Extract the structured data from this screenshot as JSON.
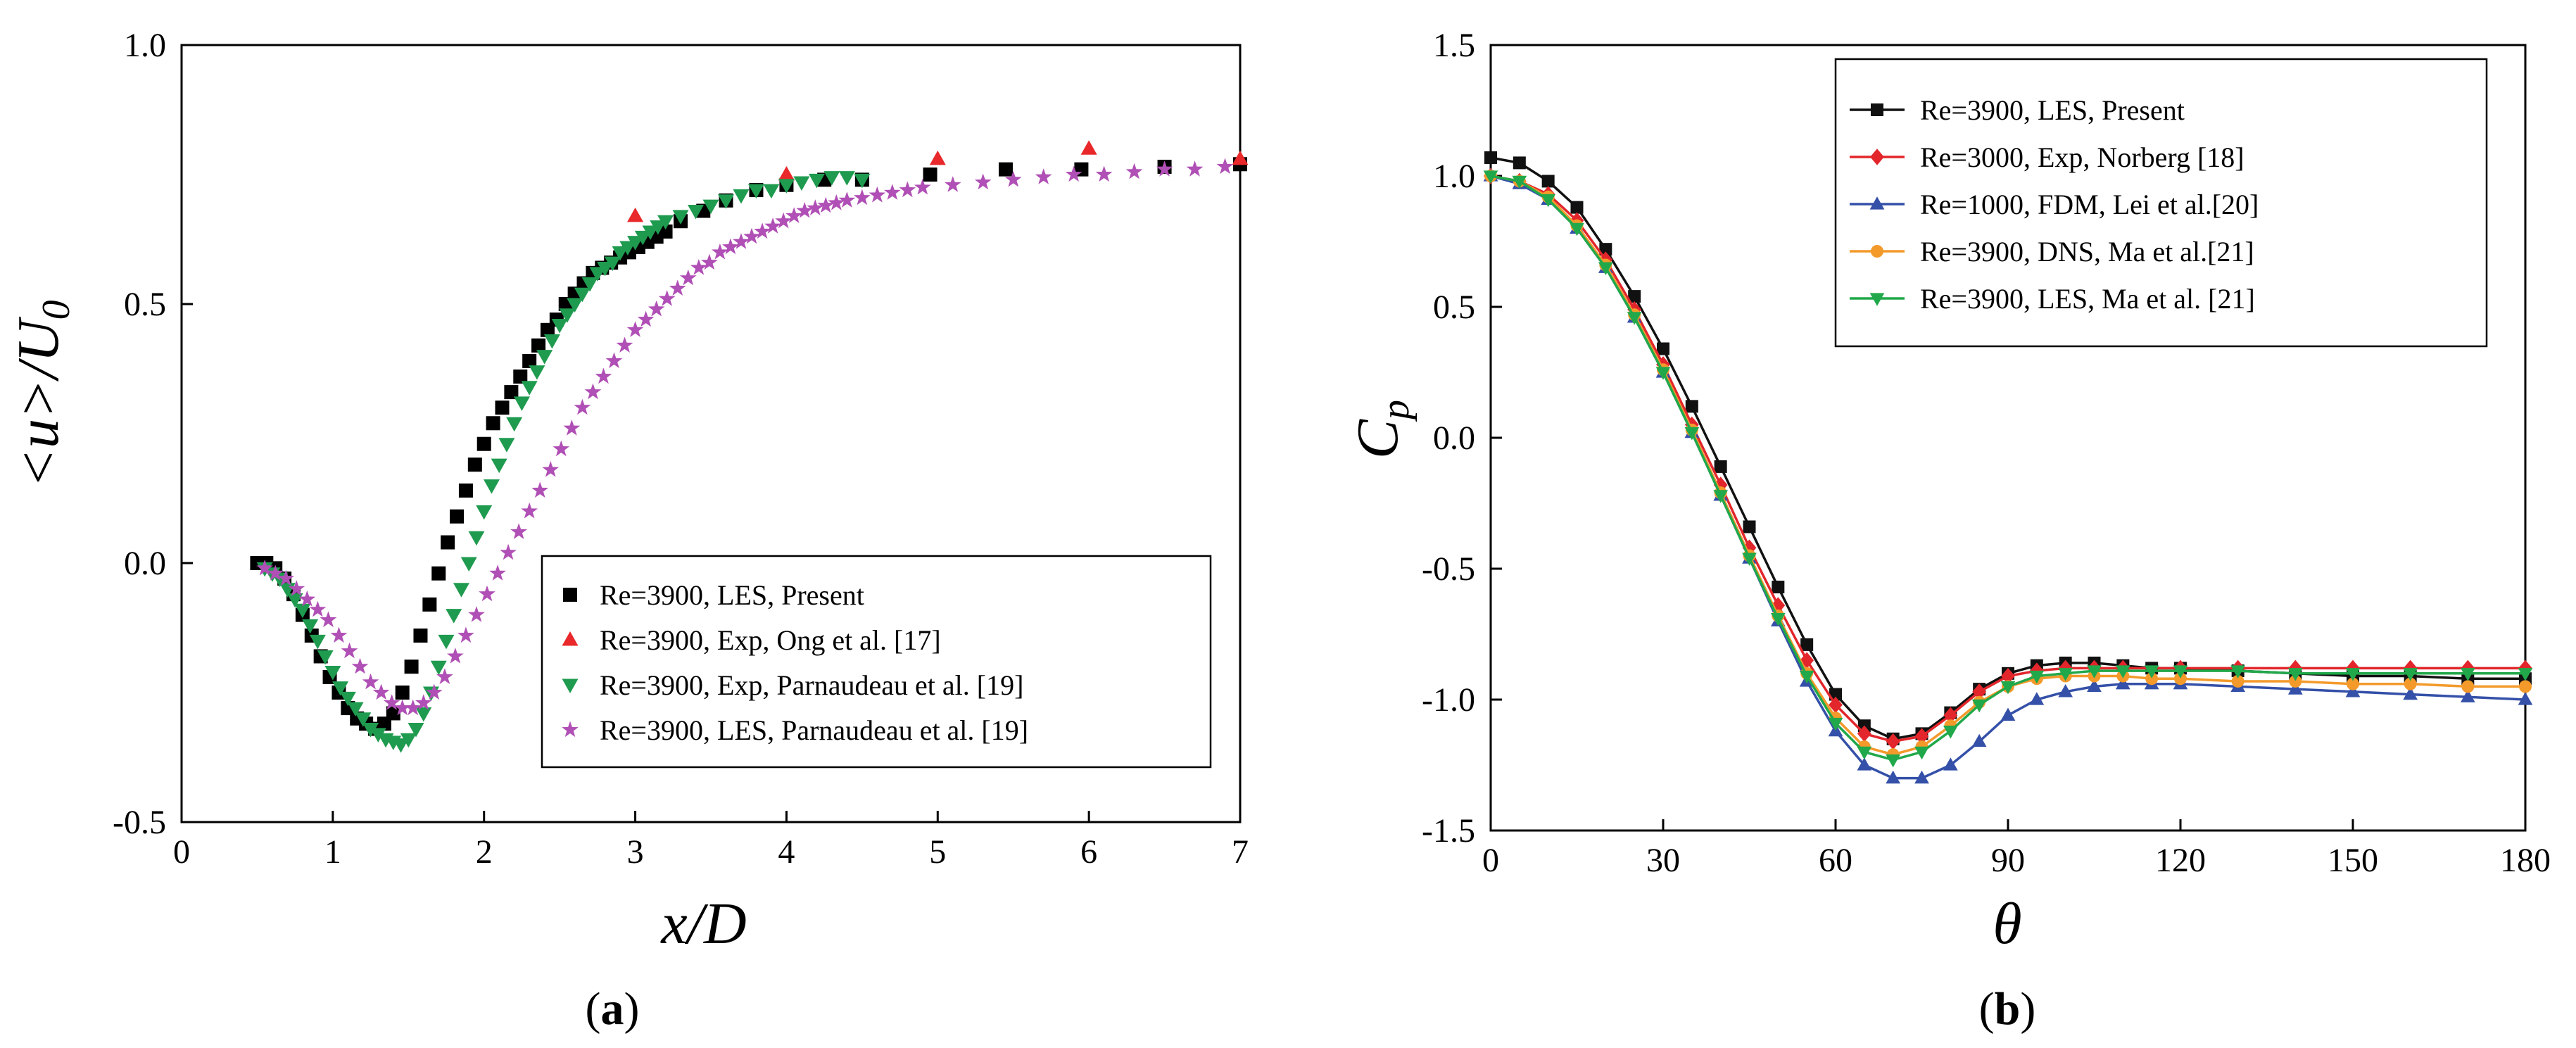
{
  "chart_data": [
    {
      "type": "scatter",
      "panel_label": "a",
      "xlabel": "x/D",
      "ylabel": "<u>/U",
      "ylabel_subscript": "0",
      "xlim": [
        0,
        7
      ],
      "ylim": [
        -0.5,
        1.0
      ],
      "xticks": [
        "0",
        "1",
        "2",
        "3",
        "4",
        "5",
        "6",
        "7"
      ],
      "yticks": [
        "-0.5",
        "0.0",
        "0.5",
        "1.0"
      ],
      "legend_position": "bottom-right",
      "series": [
        {
          "name": "Re=3900, LES, Present",
          "marker": "square",
          "color": "#000000",
          "x": [
            0.5,
            0.56,
            0.62,
            0.68,
            0.74,
            0.8,
            0.86,
            0.92,
            0.98,
            1.04,
            1.1,
            1.16,
            1.22,
            1.28,
            1.34,
            1.4,
            1.46,
            1.52,
            1.58,
            1.64,
            1.7,
            1.76,
            1.82,
            1.88,
            1.94,
            2.0,
            2.06,
            2.12,
            2.18,
            2.24,
            2.3,
            2.36,
            2.42,
            2.48,
            2.54,
            2.6,
            2.66,
            2.72,
            2.78,
            2.84,
            2.9,
            2.96,
            3.02,
            3.08,
            3.14,
            3.2,
            3.3,
            3.45,
            3.6,
            3.8,
            4.0,
            4.25,
            4.5,
            4.95,
            5.45,
            5.95,
            6.5,
            7.0
          ],
          "y": [
            0.0,
            0.0,
            -0.01,
            -0.03,
            -0.06,
            -0.1,
            -0.14,
            -0.18,
            -0.22,
            -0.25,
            -0.28,
            -0.3,
            -0.31,
            -0.32,
            -0.31,
            -0.29,
            -0.25,
            -0.2,
            -0.14,
            -0.08,
            -0.02,
            0.04,
            0.09,
            0.14,
            0.19,
            0.23,
            0.27,
            0.3,
            0.33,
            0.36,
            0.39,
            0.42,
            0.45,
            0.47,
            0.5,
            0.52,
            0.54,
            0.56,
            0.57,
            0.58,
            0.59,
            0.6,
            0.61,
            0.62,
            0.63,
            0.64,
            0.66,
            0.68,
            0.7,
            0.72,
            0.73,
            0.74,
            0.74,
            0.75,
            0.76,
            0.76,
            0.765,
            0.77
          ]
        },
        {
          "name": "Re=3900, Exp, Ong et al. [17]",
          "marker": "triangle-up",
          "color": "#e8282a",
          "x": [
            3.0,
            4.0,
            5.0,
            6.0,
            7.0
          ],
          "y": [
            0.67,
            0.75,
            0.78,
            0.8,
            0.78
          ]
        },
        {
          "name": "Re=3900, Exp, Parnaudeau et al. [19]",
          "marker": "triangle-down",
          "color": "#1f9b4f",
          "x": [
            0.55,
            0.6,
            0.65,
            0.7,
            0.75,
            0.8,
            0.85,
            0.9,
            0.95,
            1.0,
            1.05,
            1.1,
            1.15,
            1.2,
            1.25,
            1.3,
            1.35,
            1.4,
            1.45,
            1.5,
            1.55,
            1.6,
            1.65,
            1.7,
            1.75,
            1.8,
            1.85,
            1.9,
            1.95,
            2.0,
            2.05,
            2.1,
            2.15,
            2.2,
            2.25,
            2.3,
            2.35,
            2.4,
            2.45,
            2.5,
            2.55,
            2.6,
            2.65,
            2.7,
            2.75,
            2.8,
            2.85,
            2.9,
            2.95,
            3.0,
            3.05,
            3.1,
            3.15,
            3.2,
            3.3,
            3.4,
            3.5,
            3.6,
            3.7,
            3.8,
            3.9,
            4.0,
            4.1,
            4.2,
            4.3,
            4.4,
            4.5
          ],
          "y": [
            -0.01,
            -0.02,
            -0.03,
            -0.05,
            -0.07,
            -0.09,
            -0.12,
            -0.15,
            -0.18,
            -0.21,
            -0.24,
            -0.26,
            -0.28,
            -0.3,
            -0.32,
            -0.33,
            -0.34,
            -0.345,
            -0.35,
            -0.34,
            -0.32,
            -0.29,
            -0.25,
            -0.2,
            -0.15,
            -0.1,
            -0.05,
            0.0,
            0.05,
            0.1,
            0.15,
            0.19,
            0.23,
            0.27,
            0.31,
            0.34,
            0.37,
            0.4,
            0.43,
            0.46,
            0.48,
            0.5,
            0.52,
            0.54,
            0.56,
            0.57,
            0.58,
            0.6,
            0.61,
            0.62,
            0.63,
            0.64,
            0.65,
            0.66,
            0.67,
            0.68,
            0.69,
            0.7,
            0.71,
            0.72,
            0.72,
            0.73,
            0.735,
            0.74,
            0.745,
            0.745,
            0.74
          ]
        },
        {
          "name": "Re=3900, LES, Parnaudeau et al. [19]",
          "marker": "star",
          "color": "#b04fb5",
          "x": [
            0.55,
            0.62,
            0.69,
            0.76,
            0.83,
            0.9,
            0.97,
            1.04,
            1.11,
            1.18,
            1.25,
            1.32,
            1.39,
            1.46,
            1.53,
            1.6,
            1.67,
            1.74,
            1.81,
            1.88,
            1.95,
            2.02,
            2.09,
            2.16,
            2.23,
            2.3,
            2.37,
            2.44,
            2.51,
            2.58,
            2.65,
            2.72,
            2.79,
            2.86,
            2.93,
            3.0,
            3.07,
            3.14,
            3.21,
            3.28,
            3.35,
            3.42,
            3.49,
            3.56,
            3.63,
            3.7,
            3.77,
            3.84,
            3.91,
            3.98,
            4.05,
            4.12,
            4.19,
            4.26,
            4.33,
            4.4,
            4.5,
            4.6,
            4.7,
            4.8,
            4.9,
            5.1,
            5.3,
            5.5,
            5.7,
            5.9,
            6.1,
            6.3,
            6.5,
            6.7,
            6.9
          ],
          "y": [
            -0.01,
            -0.02,
            -0.03,
            -0.05,
            -0.07,
            -0.09,
            -0.11,
            -0.14,
            -0.17,
            -0.2,
            -0.23,
            -0.25,
            -0.27,
            -0.28,
            -0.28,
            -0.27,
            -0.25,
            -0.22,
            -0.18,
            -0.14,
            -0.1,
            -0.06,
            -0.02,
            0.02,
            0.06,
            0.1,
            0.14,
            0.18,
            0.22,
            0.26,
            0.3,
            0.33,
            0.36,
            0.39,
            0.42,
            0.45,
            0.47,
            0.49,
            0.51,
            0.53,
            0.55,
            0.57,
            0.58,
            0.6,
            0.61,
            0.62,
            0.63,
            0.64,
            0.65,
            0.66,
            0.67,
            0.68,
            0.685,
            0.69,
            0.695,
            0.7,
            0.705,
            0.71,
            0.715,
            0.72,
            0.725,
            0.73,
            0.735,
            0.74,
            0.745,
            0.75,
            0.75,
            0.755,
            0.76,
            0.76,
            0.765
          ]
        }
      ]
    },
    {
      "type": "line",
      "panel_label": "b",
      "xlabel": "θ",
      "ylabel": "C",
      "ylabel_subscript": "p",
      "xlim": [
        0,
        180
      ],
      "ylim": [
        -1.5,
        1.5
      ],
      "xticks": [
        "0",
        "30",
        "60",
        "90",
        "120",
        "150",
        "180"
      ],
      "yticks": [
        "-1.5",
        "-1.0",
        "-0.5",
        "0.0",
        "0.5",
        "1.0",
        "1.5"
      ],
      "legend_position": "top-left",
      "series": [
        {
          "name": "Re=3900, LES, Present",
          "marker": "square",
          "color": "#111111",
          "x": [
            0,
            5,
            10,
            15,
            20,
            25,
            30,
            35,
            40,
            45,
            50,
            55,
            60,
            65,
            70,
            75,
            80,
            85,
            90,
            95,
            100,
            105,
            110,
            115,
            120,
            130,
            140,
            150,
            160,
            170,
            180
          ],
          "y": [
            1.07,
            1.05,
            0.98,
            0.88,
            0.72,
            0.54,
            0.34,
            0.12,
            -0.11,
            -0.34,
            -0.57,
            -0.79,
            -0.98,
            -1.1,
            -1.15,
            -1.13,
            -1.05,
            -0.96,
            -0.9,
            -0.87,
            -0.86,
            -0.86,
            -0.87,
            -0.88,
            -0.88,
            -0.89,
            -0.9,
            -0.91,
            -0.91,
            -0.92,
            -0.92
          ]
        },
        {
          "name": "Re=3000, Exp, Norberg [18]",
          "marker": "diamond",
          "color": "#e2262b",
          "x": [
            0,
            5,
            10,
            15,
            20,
            25,
            30,
            35,
            40,
            45,
            50,
            55,
            60,
            65,
            70,
            75,
            80,
            85,
            90,
            95,
            100,
            105,
            110,
            120,
            130,
            140,
            150,
            160,
            170,
            180
          ],
          "y": [
            1.0,
            0.98,
            0.93,
            0.83,
            0.68,
            0.49,
            0.28,
            0.05,
            -0.18,
            -0.42,
            -0.64,
            -0.85,
            -1.02,
            -1.13,
            -1.16,
            -1.14,
            -1.06,
            -0.97,
            -0.91,
            -0.89,
            -0.88,
            -0.88,
            -0.88,
            -0.88,
            -0.88,
            -0.88,
            -0.88,
            -0.88,
            -0.88,
            -0.88
          ]
        },
        {
          "name": "Re=1000, FDM, Lei et al.[20]",
          "marker": "triangle-up",
          "color": "#3450a8",
          "x": [
            0,
            5,
            10,
            15,
            20,
            25,
            30,
            35,
            40,
            45,
            50,
            55,
            60,
            65,
            70,
            75,
            80,
            85,
            90,
            95,
            100,
            105,
            110,
            115,
            120,
            130,
            140,
            150,
            160,
            170,
            180
          ],
          "y": [
            1.0,
            0.97,
            0.91,
            0.8,
            0.65,
            0.46,
            0.25,
            0.02,
            -0.22,
            -0.46,
            -0.7,
            -0.93,
            -1.12,
            -1.25,
            -1.3,
            -1.3,
            -1.25,
            -1.16,
            -1.06,
            -1.0,
            -0.97,
            -0.95,
            -0.94,
            -0.94,
            -0.94,
            -0.95,
            -0.96,
            -0.97,
            -0.98,
            -0.99,
            -1.0
          ]
        },
        {
          "name": "Re=3900, DNS, Ma et al.[21]",
          "marker": "circle",
          "color": "#f39a2b",
          "x": [
            0,
            5,
            10,
            15,
            20,
            25,
            30,
            35,
            40,
            45,
            50,
            55,
            60,
            65,
            70,
            75,
            80,
            85,
            90,
            95,
            100,
            105,
            110,
            115,
            120,
            130,
            140,
            150,
            160,
            170,
            180
          ],
          "y": [
            1.0,
            0.98,
            0.92,
            0.81,
            0.66,
            0.47,
            0.26,
            0.03,
            -0.21,
            -0.45,
            -0.68,
            -0.9,
            -1.07,
            -1.18,
            -1.21,
            -1.18,
            -1.1,
            -1.01,
            -0.95,
            -0.92,
            -0.91,
            -0.91,
            -0.91,
            -0.92,
            -0.92,
            -0.93,
            -0.93,
            -0.94,
            -0.94,
            -0.95,
            -0.95
          ]
        },
        {
          "name": "Re=3900, LES, Ma et al. [21]",
          "marker": "triangle-down",
          "color": "#21a84a",
          "x": [
            0,
            5,
            10,
            15,
            20,
            25,
            30,
            35,
            40,
            45,
            50,
            55,
            60,
            65,
            70,
            75,
            80,
            85,
            90,
            95,
            100,
            105,
            110,
            115,
            120,
            130,
            140,
            150,
            160,
            170,
            180
          ],
          "y": [
            1.0,
            0.98,
            0.91,
            0.8,
            0.65,
            0.46,
            0.25,
            0.02,
            -0.22,
            -0.46,
            -0.69,
            -0.91,
            -1.09,
            -1.2,
            -1.23,
            -1.2,
            -1.12,
            -1.02,
            -0.95,
            -0.91,
            -0.9,
            -0.89,
            -0.89,
            -0.89,
            -0.89,
            -0.89,
            -0.9,
            -0.9,
            -0.9,
            -0.9,
            -0.9
          ]
        }
      ]
    }
  ]
}
